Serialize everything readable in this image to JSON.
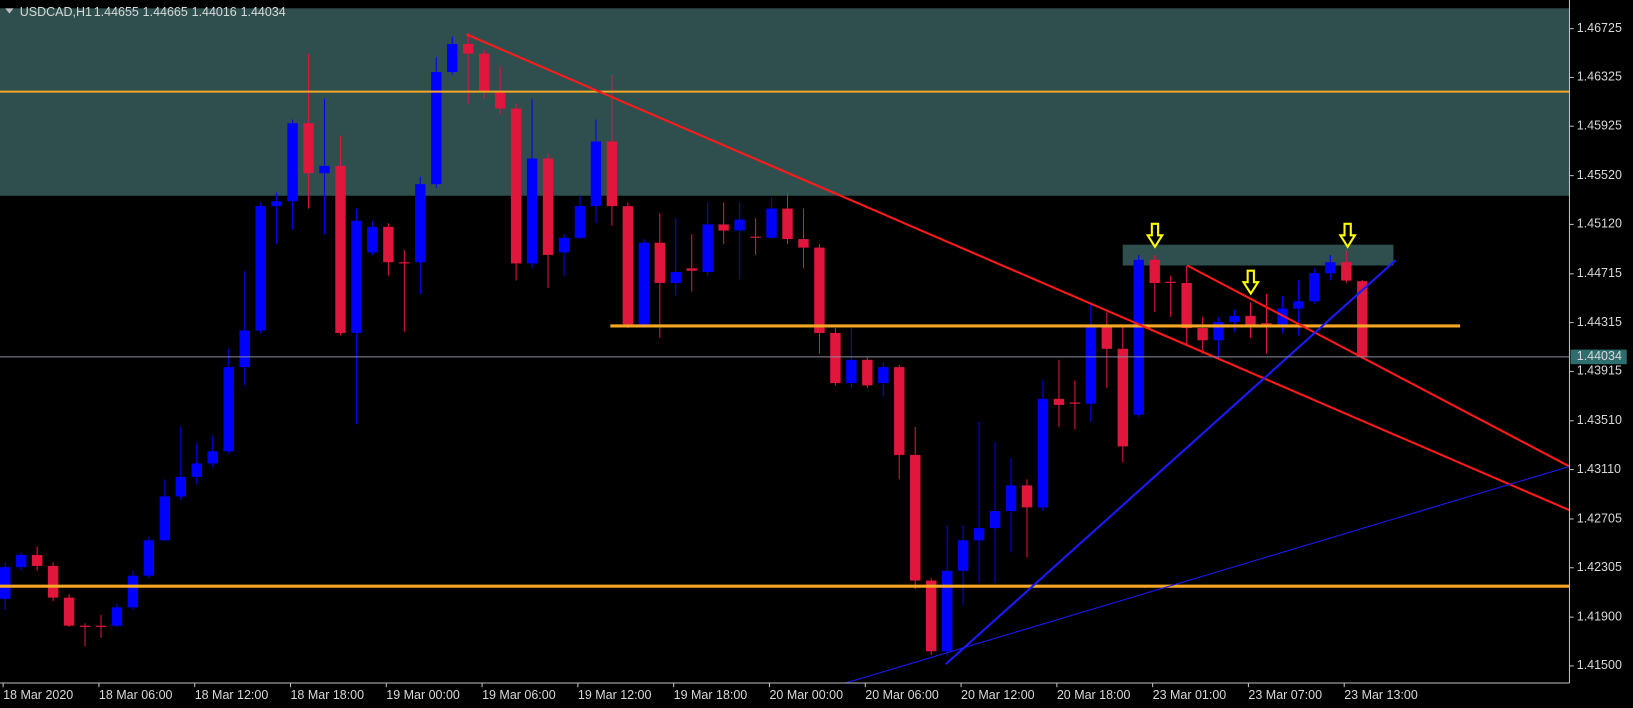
{
  "chart_data": {
    "type": "candlestick",
    "title": "USDCAD,H1",
    "categories": [
      "18 Mar 2020",
      null,
      null,
      null,
      null,
      null,
      "18 Mar 06:00",
      null,
      null,
      null,
      null,
      null,
      "18 Mar 12:00",
      null,
      null,
      null,
      null,
      null,
      "18 Mar 18:00",
      null,
      null,
      null,
      null,
      null,
      "19 Mar 00:00",
      null,
      null,
      null,
      null,
      null,
      "19 Mar 06:00",
      null,
      null,
      null,
      null,
      null,
      "19 Mar 12:00",
      null,
      null,
      null,
      null,
      null,
      "19 Mar 18:00",
      null,
      null,
      null,
      null,
      null,
      "20 Mar 00:00",
      null,
      null,
      null,
      null,
      null,
      "20 Mar 06:00",
      null,
      null,
      null,
      null,
      null,
      "20 Mar 12:00",
      null,
      null,
      null,
      null,
      null,
      "20 Mar 18:00",
      null,
      null,
      null,
      null,
      null,
      "23 Mar 01:00",
      null,
      null,
      null,
      null,
      null,
      "23 Mar 07:00",
      null,
      null,
      null,
      null,
      null,
      "23 Mar 13:00",
      null
    ],
    "series": {
      "up_color": "#0000ff",
      "down_color": "#e0163c",
      "open": [
        1.4205,
        1.4231,
        1.4241,
        1.4232,
        1.4206,
        1.4183,
        1.4183,
        1.4183,
        1.4198,
        1.4224,
        1.4253,
        1.4289,
        1.4305,
        1.4316,
        1.4326,
        1.4395,
        1.4425,
        1.4527,
        1.4531,
        1.4595,
        1.4554,
        1.456,
        1.4423,
        1.4489,
        1.451,
        1.4481,
        1.4481,
        1.4545,
        1.4637,
        1.466,
        1.4652,
        1.4621,
        1.4607,
        1.448,
        1.4566,
        1.4489,
        1.4501,
        1.4527,
        1.458,
        1.4527,
        1.443,
        1.4497,
        1.4464,
        1.4476,
        1.4473,
        1.4512,
        1.4507,
        1.4502,
        1.4501,
        1.4525,
        1.45,
        1.4493,
        1.4423,
        1.4382,
        1.4401,
        1.4382,
        1.4395,
        1.4323,
        1.422,
        1.4162,
        1.4228,
        1.4253,
        1.4263,
        1.4277,
        1.4298,
        1.428,
        1.4369,
        1.4366,
        1.4365,
        1.4428,
        1.441,
        1.4356,
        1.4483,
        1.4465,
        1.4464,
        1.4427,
        1.4417,
        1.4432,
        1.4437,
        1.4431,
        1.443,
        1.4443,
        1.4449,
        1.4472,
        1.4481,
        1.44655
      ],
      "high": [
        1.4235,
        1.4243,
        1.4248,
        1.4235,
        1.4209,
        1.4185,
        1.4192,
        1.4201,
        1.4228,
        1.4256,
        1.4303,
        1.4346,
        1.4333,
        1.4339,
        1.441,
        1.4474,
        1.453,
        1.4538,
        1.4598,
        1.4652,
        1.4615,
        1.4585,
        1.4525,
        1.4515,
        1.4513,
        1.4491,
        1.4551,
        1.4649,
        1.4666,
        1.4669,
        1.4655,
        1.4641,
        1.4611,
        1.4615,
        1.457,
        1.4504,
        1.4536,
        1.4598,
        1.4635,
        1.453,
        1.45,
        1.4521,
        1.4517,
        1.4504,
        1.453,
        1.453,
        1.453,
        1.4517,
        1.4534,
        1.4538,
        1.4525,
        1.4496,
        1.4427,
        1.4427,
        1.4403,
        1.4399,
        1.4397,
        1.4346,
        1.4222,
        1.4265,
        1.4265,
        1.435,
        1.4333,
        1.432,
        1.4303,
        1.4384,
        1.4401,
        1.4384,
        1.4448,
        1.444,
        1.443,
        1.4487,
        1.4487,
        1.447,
        1.4478,
        1.4436,
        1.4436,
        1.4442,
        1.4448,
        1.4455,
        1.4453,
        1.4466,
        1.4476,
        1.4487,
        1.4491,
        1.44665
      ],
      "low": [
        1.4196,
        1.4228,
        1.4228,
        1.4203,
        1.4182,
        1.4166,
        1.4173,
        1.4182,
        1.4196,
        1.4222,
        1.4252,
        1.4286,
        1.4299,
        1.4313,
        1.4324,
        1.438,
        1.4423,
        1.4496,
        1.4508,
        1.4525,
        1.4504,
        1.4421,
        1.4348,
        1.4487,
        1.447,
        1.4424,
        1.4455,
        1.4542,
        1.4635,
        1.4611,
        1.4615,
        1.4602,
        1.4466,
        1.4476,
        1.446,
        1.447,
        1.45,
        1.4513,
        1.4511,
        1.4427,
        1.4427,
        1.4419,
        1.4453,
        1.4457,
        1.447,
        1.4496,
        1.4467,
        1.4487,
        1.45,
        1.4496,
        1.4476,
        1.4406,
        1.438,
        1.4378,
        1.4378,
        1.4371,
        1.4303,
        1.4213,
        1.4159,
        1.4158,
        1.42,
        1.4218,
        1.4218,
        1.4243,
        1.4239,
        1.4277,
        1.4346,
        1.4344,
        1.435,
        1.4378,
        1.4317,
        1.4354,
        1.444,
        1.4436,
        1.4413,
        1.4406,
        1.4403,
        1.4424,
        1.4419,
        1.4406,
        1.4423,
        1.4421,
        1.4447,
        1.4466,
        1.4464,
        1.44016
      ],
      "close": [
        1.4231,
        1.4241,
        1.4232,
        1.4206,
        1.4183,
        1.4182,
        1.4182,
        1.4198,
        1.4224,
        1.4253,
        1.4289,
        1.4305,
        1.4316,
        1.4326,
        1.4395,
        1.4425,
        1.4527,
        1.4531,
        1.4595,
        1.4554,
        1.456,
        1.4423,
        1.4515,
        1.451,
        1.4481,
        1.448,
        1.4545,
        1.4637,
        1.466,
        1.4652,
        1.4621,
        1.4607,
        1.448,
        1.4566,
        1.4487,
        1.4501,
        1.4527,
        1.458,
        1.4527,
        1.443,
        1.4497,
        1.4464,
        1.4473,
        1.4474,
        1.4512,
        1.4507,
        1.4516,
        1.4501,
        1.4525,
        1.45,
        1.4493,
        1.4423,
        1.4382,
        1.4401,
        1.438,
        1.4395,
        1.4323,
        1.422,
        1.4162,
        1.4228,
        1.4253,
        1.4263,
        1.4277,
        1.4298,
        1.428,
        1.4369,
        1.4364,
        1.4365,
        1.4428,
        1.441,
        1.433,
        1.4483,
        1.4464,
        1.4464,
        1.4427,
        1.4417,
        1.4432,
        1.4437,
        1.4429,
        1.443,
        1.4443,
        1.4449,
        1.4472,
        1.4481,
        1.4466,
        1.44034
      ]
    },
    "ylim": [
      1.4136,
      1.4696
    ],
    "yticks": [
      1.46725,
      1.46325,
      1.45925,
      {
        "value": 1.4552,
        "label": "1.45520"
      },
      {
        "value": 1.4512,
        "label": "1.45120"
      },
      1.44715,
      1.44315,
      1.43915,
      {
        "value": 1.4351,
        "label": "1.43510"
      },
      {
        "value": 1.4311,
        "label": "1.43110"
      },
      1.42705,
      1.42305,
      {
        "value": 1.419,
        "label": "1.41900"
      },
      {
        "value": 1.415,
        "label": "1.41500"
      }
    ],
    "grid": false
  }
}
